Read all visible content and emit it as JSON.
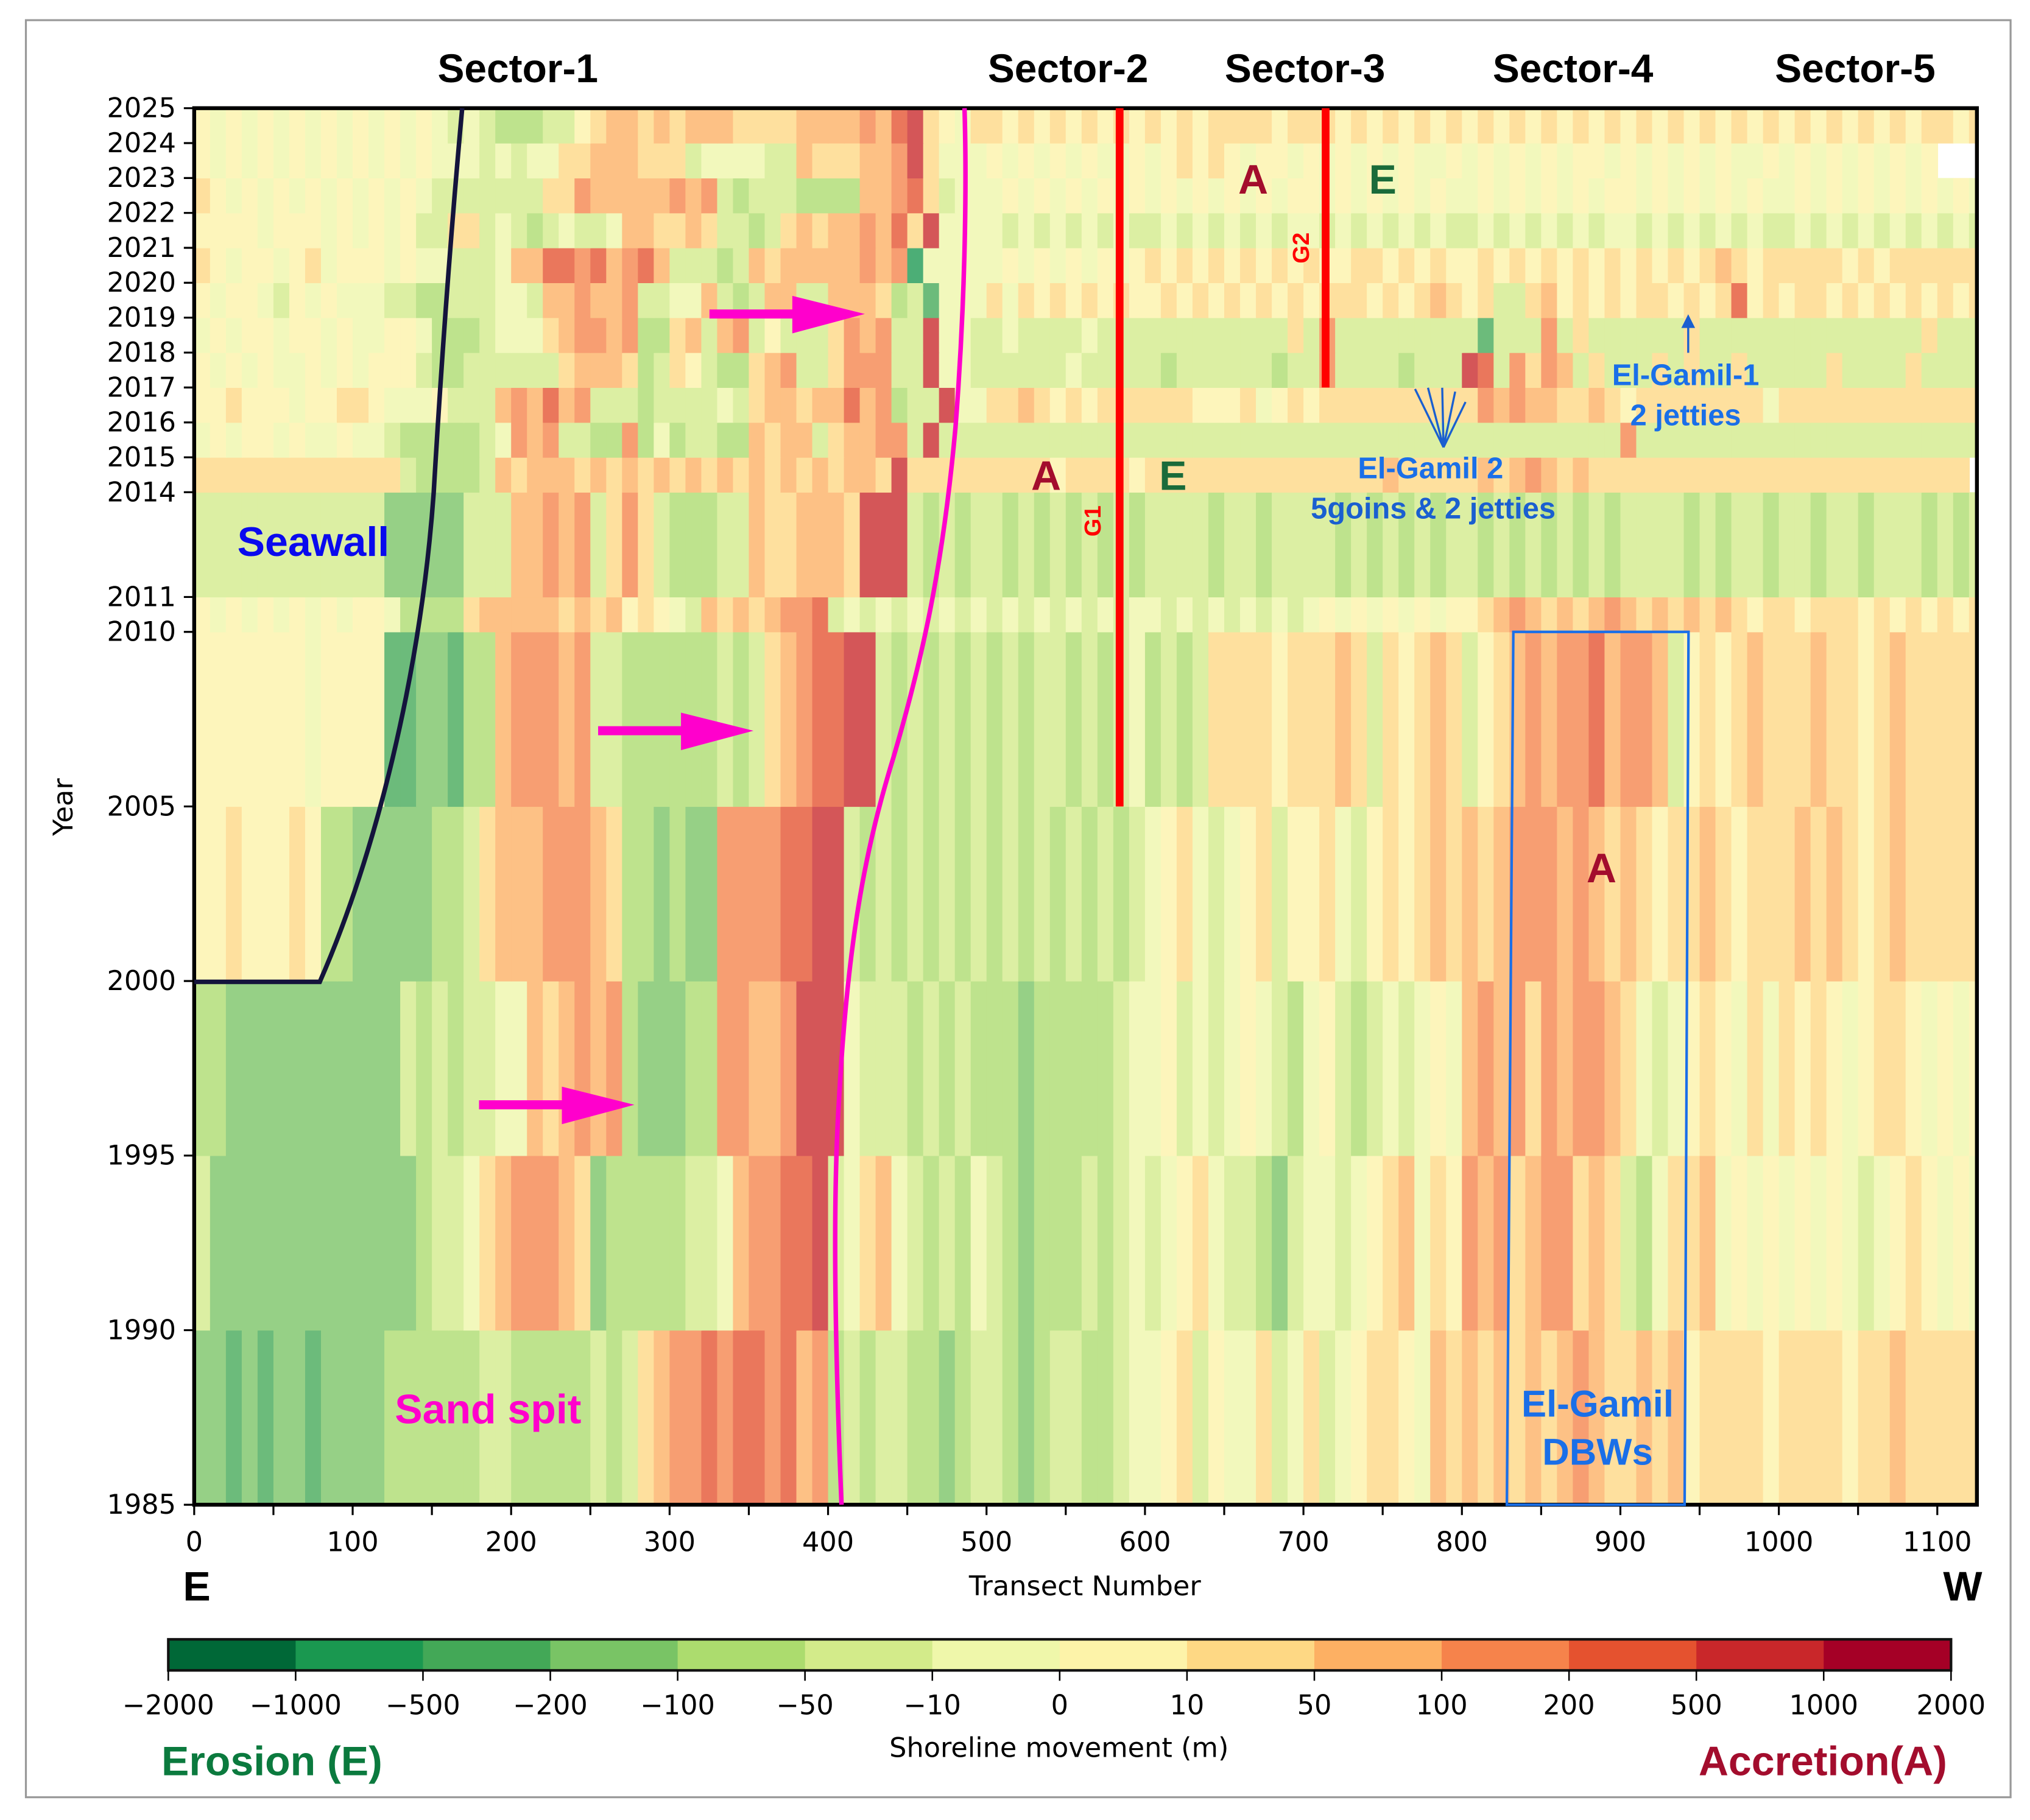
{
  "chart_data": {
    "type": "heatmap",
    "title": "",
    "xlabel": "Transect Number",
    "ylabel": "Year",
    "xlim": [
      0,
      1125
    ],
    "ylim": [
      1985,
      2025
    ],
    "x_ticks": [
      "0",
      "100",
      "200",
      "300",
      "400",
      "500",
      "600",
      "700",
      "800",
      "900",
      "1000",
      "1100"
    ],
    "y_ticks": [
      "1985",
      "1990",
      "1995",
      "2000",
      "2005",
      "2010",
      "2011",
      "2014",
      "2015",
      "2016",
      "2017",
      "2018",
      "2019",
      "2020",
      "2021",
      "2022",
      "2023",
      "2024",
      "2025"
    ],
    "direction_labels": {
      "left": "E",
      "right": "W"
    },
    "sectors": [
      "Sector-1",
      "Sector-2",
      "Sector-3",
      "Sector-4",
      "Sector-5"
    ],
    "bin_width_transects": 10,
    "class_colors": [
      "#006837",
      "#1a9850",
      "#43a857",
      "#79c465",
      "#acdc6e",
      "#d3eb8a",
      "#eff7aa",
      "#fdf3a9",
      "#fed884",
      "#fdb063",
      "#f6834b",
      "#e5522f",
      "#c9272a",
      "#a50026"
    ],
    "rows": [
      {
        "from": 1985,
        "to": 1990,
        "classes": "33232332333344444455444445458 9aababbab9a4545544345543455445667857668568567887698989898 9a988989788887888878898888 8"
      },
      {
        "from": 1990,
        "to": 1995,
        "classes": "53333333333333455689aaa983444445569aabbc568965454654344454565678655435665678968 7a9a89aa8985468896767676765678767 6"
      },
      {
        "from": 1995,
        "to": 2000,
        "classes": "44333333333335454556698 9a9a4333 44aa99accc655545454443444445667565676546754565676 9a9a8a9aa98656787686878767887 6767"
      },
      {
        "from": 2000,
        "to": 2005,
        "classes": "77877787443333344589 99aaa98443433aaaabbcc5454545454545454545678656785778657878989 89aaa9a989878898788898987898888 8"
      },
      {
        "from": 2005,
        "to": 2010,
        "classes": "77777776777722332449aaa9a554444445458 9abbcc545454545455454564545888878889858789857 89a9aab9aa95787898889887898888 8"
      },
      {
        "from": 2010,
        "to": 2011,
        "classes": "76767676767764444899999898978765989 89aab56565656565656565656656565656567676767677 89a98989a9898989878878887878787 8"
      },
      {
        "from": 2011,
        "to": 2014,
        "classes": "5555555555553333355599a9a58a8544455988999 8ccc5454554545454545555455455554545454554545454545555 45455455455455545454545"
      },
      {
        "from": 2014,
        "to": 2015,
        "classes": "88888888888885444459899989898989898989898 998c88888888878888788888888888888898888898 9a98988888888888888888888888 8"
      },
      {
        "from": 2015,
        "to": 2016,
        "classes": "676776766766544444 56a9a5544a4645544989 95899aa5c555555555555555555555555555555555555 5555555a5555555555555555555555555 566"
      },
      {
        "from": 2016,
        "to": 2017,
        "classes": "77877767788766675559a9b9a555455556589989 9b9a455c66889878788888877786787888888888 8a9a998898788888888688888888888 88"
      },
      {
        "from": 2017,
        "to": 2018,
        "classes": "76767667676777544555555 8999845875448 9a558aaa55c6655555565555545555554 55a55554555cb5a8a958555858558555558555585555"
      },
      {
        "from": 2018,
        "to": 2019,
        "classes": "676776776766776444566689aa9a4489 59a575558a9a55c665565555655555555555585a5555555552555a585555558555555555555558 555"
      },
      {
        "from": 2019,
        "to": 2020,
        "classes": "767765767666554455566599a99a556695459955 9998452666868787878778787878787888787898785589787878878 78b787887878787 878"
      },
      {
        "from": 2020,
        "to": 2021,
        "classes": "8767767867776766555699bbab9ab95554598999 99a9a1666667676767678787878787877887878778787878787878789878888878788 8 888"
      },
      {
        "from": 2021,
        "to": 2022,
        "classes": "777767776767675588565456556998898554589899a9b8c6666565656565565656565665656565655656565656 656565656556565656565 65"
      },
      {
        "from": 2022,
        "to": 2023,
        "classes": "876767676767676555555588a99999a9a54555444499ab85666767676767676767676776767676766767676767767676767667676767676 76"
      },
      {
        "from": 2023,
        "to": 2024,
        "classes": "76767676767676766656566889998885666655988899ac866676767676676787876776767676766767676767767676767667676767676 7"
      },
      {
        "from": 2024,
        "to": 2025,
        "classes": "76767676767676765654445578998989998888999 9a9bc8768878787878787878888788878787878787878787878787878787878787878878 8888"
      }
    ],
    "colorbar": {
      "label": "Shoreline movement (m)",
      "boundaries": [
        "−2000",
        "−1000",
        "−500",
        "−200",
        "−100",
        "−50",
        "−10",
        "0",
        "10",
        "50",
        "100",
        "200",
        "500",
        "1000",
        "2000"
      ],
      "erosion_label": "Erosion (E)",
      "accretion_label": "Accretion(A)"
    },
    "annotations": {
      "seawall": "Seawall",
      "sand_spit": "Sand spit",
      "groin_1": "G1",
      "groin_2": "G2",
      "el_gamil_2": "El-Gamil 2",
      "el_gamil_2_detail": "5goins & 2 jetties",
      "el_gamil_1": "El-Gamil-1",
      "el_gamil_1_detail": "2 jetties",
      "dbw_line1": "El-Gamil",
      "dbw_line2": "DBWs",
      "accretion_marker": "A",
      "erosion_marker": "E",
      "groin_1_transect": 584,
      "groin_1_years": [
        2005,
        2025
      ],
      "groin_2_transect": 714,
      "groin_2_years": [
        2017,
        2025
      ],
      "dbw_box_transects": [
        830,
        943
      ],
      "dbw_box_years": [
        1985,
        2010
      ]
    }
  }
}
